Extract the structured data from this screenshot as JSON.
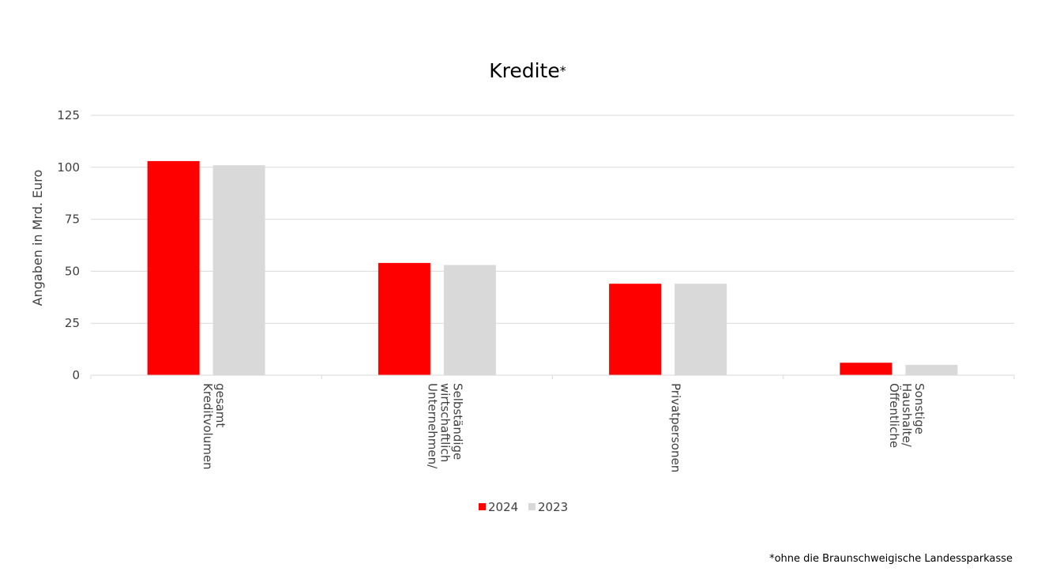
{
  "chart_data": {
    "type": "bar",
    "title": "Kredite",
    "title_suffix": "*",
    "ylabel": "Angaben in Mrd. Euro",
    "xlabel": "",
    "ylim": [
      0,
      125
    ],
    "yticks": [
      0,
      25,
      50,
      75,
      100,
      125
    ],
    "grid": true,
    "legend_position": "bottom",
    "categories": [
      [
        "Kreditvolumen",
        "gesamt"
      ],
      [
        "Unternehmen/",
        "wirtschaftlich",
        "Selbständige"
      ],
      [
        "Privatpersonen"
      ],
      [
        "Öffentliche",
        "Haushalte/",
        "Sonstige"
      ]
    ],
    "series": [
      {
        "name": "2024",
        "color": "#ff0000",
        "values": [
          103,
          54,
          44,
          6
        ]
      },
      {
        "name": "2023",
        "color": "#d9d9d9",
        "values": [
          101,
          53,
          44,
          5
        ]
      }
    ]
  },
  "footnote": "*ohne die Braunschweigische Landessparkasse"
}
